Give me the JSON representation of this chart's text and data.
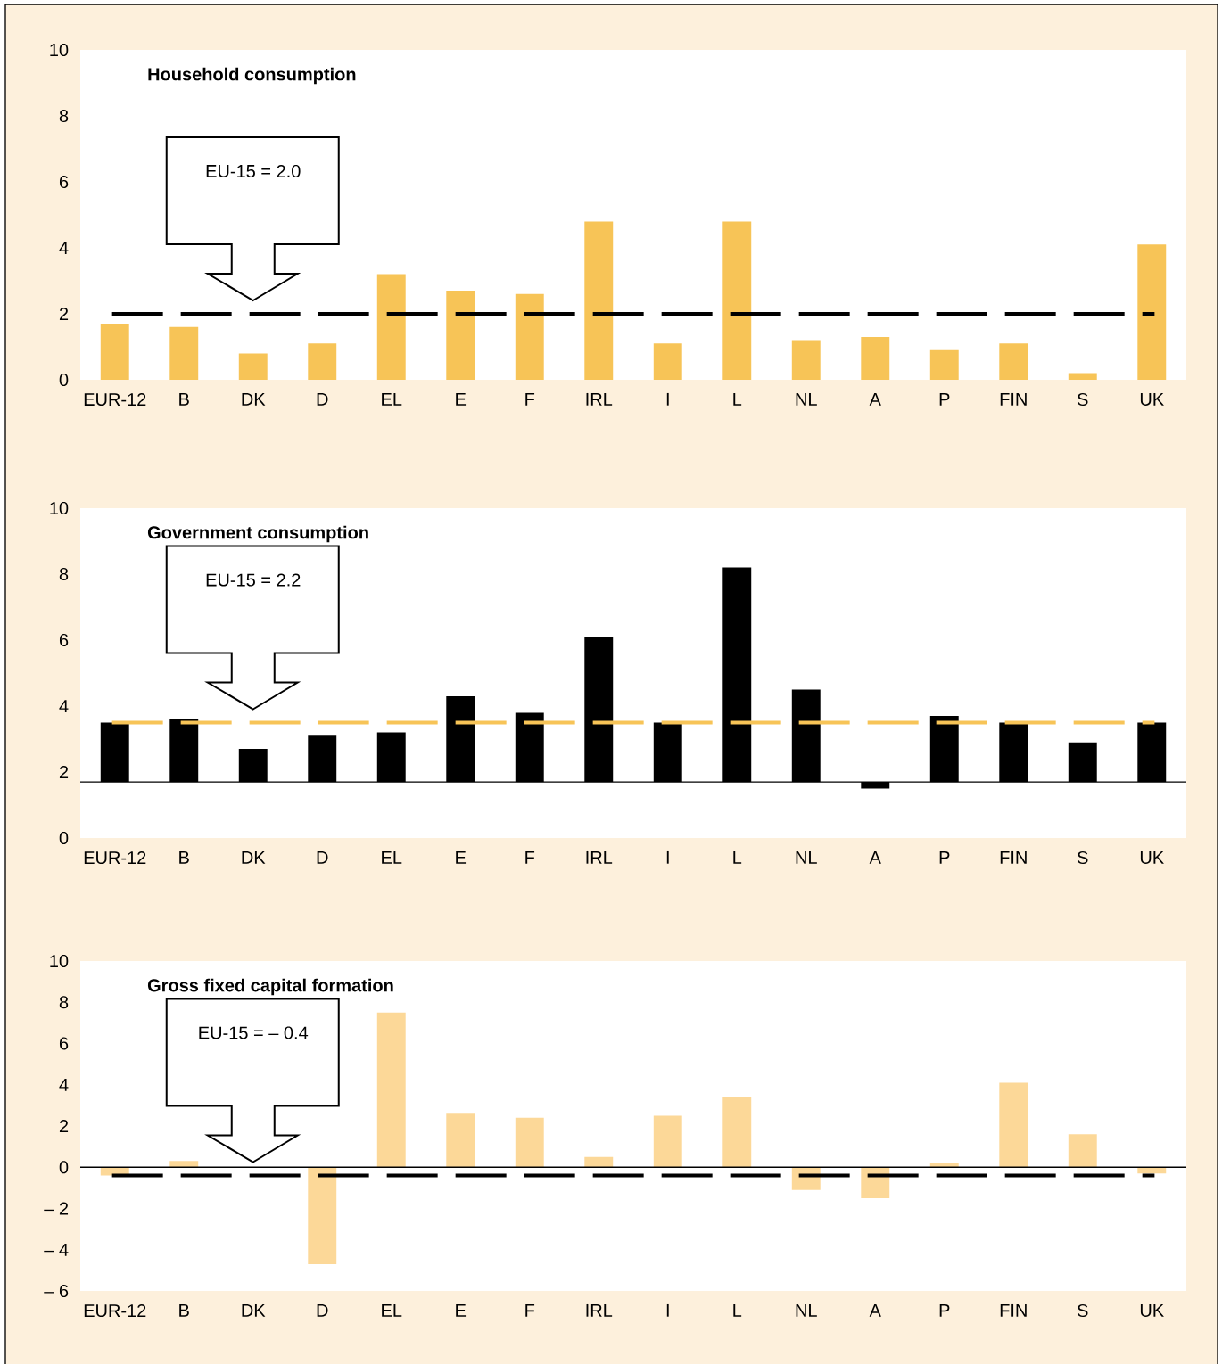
{
  "chart_data": [
    {
      "type": "bar",
      "title": "Household  consumption",
      "color": "#f7c457",
      "categories": [
        "EUR-12",
        "B",
        "DK",
        "D",
        "EL",
        "E",
        "F",
        "IRL",
        "I",
        "L",
        "NL",
        "A",
        "P",
        "FIN",
        "S",
        "UK"
      ],
      "values": [
        1.7,
        1.6,
        0.8,
        1.1,
        3.2,
        2.7,
        2.6,
        4.8,
        1.1,
        4.8,
        1.2,
        1.3,
        0.9,
        1.1,
        0.2,
        4.1
      ],
      "ylim": [
        0,
        10
      ],
      "yticks": [
        0,
        2,
        4,
        6,
        8,
        10
      ],
      "ref_lines": [
        {
          "axis": "y",
          "value": 2.0,
          "color": "#000000",
          "line_style": "dashed"
        }
      ],
      "annotations": [
        "EU-15 = 2.0"
      ]
    },
    {
      "type": "bar",
      "title": "Government consumption",
      "color": "#000000",
      "categories": [
        "EUR-12",
        "B",
        "DK",
        "D",
        "EL",
        "E",
        "F",
        "IRL",
        "I",
        "L",
        "NL",
        "A",
        "P",
        "FIN",
        "S",
        "UK"
      ],
      "base": [
        1.7,
        1.7,
        1.7,
        1.7,
        1.7,
        1.7,
        1.7,
        1.7,
        1.7,
        1.7,
        1.7,
        1.7,
        1.7,
        1.7,
        1.7,
        1.7
      ],
      "values": [
        1.8,
        1.9,
        1.0,
        1.4,
        1.5,
        2.6,
        2.1,
        4.4,
        1.8,
        6.5,
        2.8,
        -0.2,
        2.0,
        1.8,
        1.2,
        1.8
      ],
      "ylim": [
        0,
        10
      ],
      "yticks": [
        0,
        2,
        4,
        6,
        8,
        10
      ],
      "ref_lines": [
        {
          "axis": "y",
          "value": 1.7,
          "color": "#000000",
          "line_style": "solid"
        },
        {
          "axis": "y",
          "value": 3.5,
          "color": "#f7c457",
          "line_style": "dashed"
        }
      ],
      "annotations": [
        "EU-15 = 2.2"
      ]
    },
    {
      "type": "bar",
      "title": "Gross fixed capital formation",
      "color": "#fcd898",
      "categories": [
        "EUR-12",
        "B",
        "DK",
        "D",
        "EL",
        "E",
        "F",
        "IRL",
        "I",
        "L",
        "NL",
        "A",
        "P",
        "FIN",
        "S",
        "UK"
      ],
      "values": [
        -0.4,
        0.3,
        0.0,
        -4.7,
        7.5,
        2.6,
        2.4,
        0.5,
        2.5,
        3.4,
        -1.1,
        -1.5,
        0.2,
        4.1,
        1.6,
        -0.3
      ],
      "ylim": [
        -6,
        10
      ],
      "yticks": [
        {
          "value": -6,
          "label": "– 6"
        },
        {
          "value": -4,
          "label": "– 4"
        },
        {
          "value": -2,
          "label": "– 2"
        },
        0,
        2,
        4,
        6,
        8,
        10
      ],
      "ref_lines": [
        {
          "axis": "y",
          "value": 0,
          "color": "#000000",
          "line_style": "solid"
        },
        {
          "axis": "y",
          "value": -0.4,
          "color": "#000000",
          "line_style": "dashed"
        }
      ],
      "annotations": [
        "EU-15 = – 0.4"
      ]
    }
  ]
}
